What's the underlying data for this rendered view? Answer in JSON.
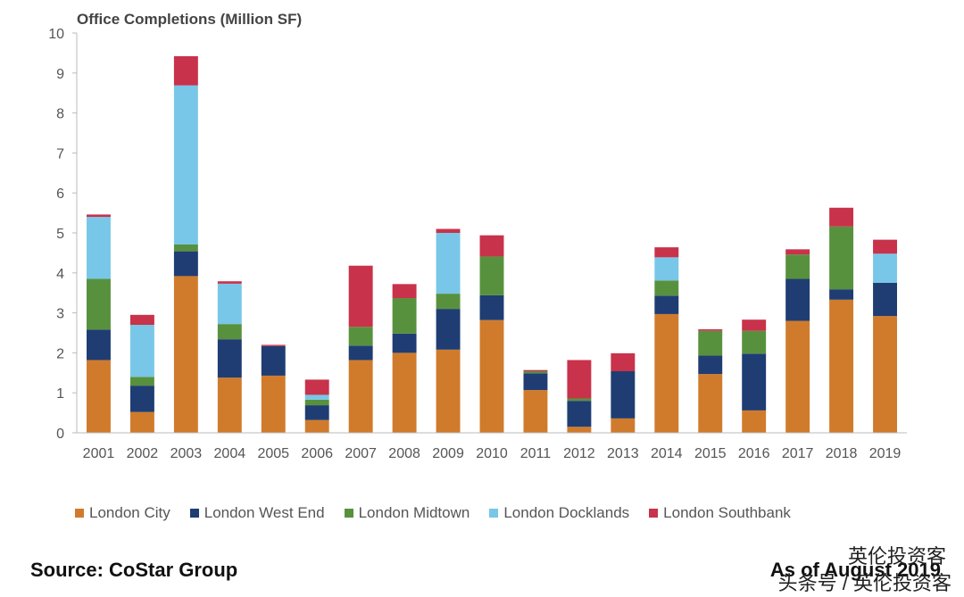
{
  "chart_data": {
    "type": "bar",
    "stacked": true,
    "title": "Office Completions (Million SF)",
    "ylim": [
      0,
      10
    ],
    "yticks": [
      0,
      1,
      2,
      3,
      4,
      5,
      6,
      7,
      8,
      9,
      10
    ],
    "categories": [
      "2001",
      "2002",
      "2003",
      "2004",
      "2005",
      "2006",
      "2007",
      "2008",
      "2009",
      "2010",
      "2011",
      "2012",
      "2013",
      "2014",
      "2015",
      "2016",
      "2017",
      "2018",
      "2019"
    ],
    "series": [
      {
        "name": "London City",
        "color": "#d07b2c",
        "values": [
          1.82,
          0.52,
          3.92,
          1.38,
          1.43,
          0.32,
          1.82,
          2.0,
          2.08,
          2.82,
          1.07,
          0.15,
          0.36,
          2.97,
          1.47,
          0.56,
          2.8,
          3.33,
          2.92
        ]
      },
      {
        "name": "London West End",
        "color": "#1f3d73",
        "values": [
          0.76,
          0.66,
          0.62,
          0.96,
          0.74,
          0.37,
          0.36,
          0.48,
          1.02,
          0.62,
          0.42,
          0.65,
          1.18,
          0.46,
          0.46,
          1.42,
          1.05,
          0.26,
          0.83
        ]
      },
      {
        "name": "London Midtown",
        "color": "#58913e",
        "values": [
          1.27,
          0.22,
          0.17,
          0.38,
          0.0,
          0.14,
          0.47,
          0.89,
          0.38,
          0.97,
          0.05,
          0.06,
          0.0,
          0.38,
          0.62,
          0.57,
          0.61,
          1.57,
          0.0
        ]
      },
      {
        "name": "London Docklands",
        "color": "#78c7e8",
        "values": [
          1.55,
          1.3,
          3.98,
          1.01,
          0.0,
          0.12,
          0.0,
          0.0,
          1.52,
          0.0,
          0.0,
          0.0,
          0.0,
          0.58,
          0.0,
          0.0,
          0.0,
          0.0,
          0.73
        ]
      },
      {
        "name": "London Southbank",
        "color": "#c8324a",
        "values": [
          0.06,
          0.25,
          0.73,
          0.06,
          0.03,
          0.38,
          1.53,
          0.35,
          0.1,
          0.53,
          0.03,
          0.96,
          0.45,
          0.25,
          0.04,
          0.28,
          0.13,
          0.47,
          0.35
        ]
      }
    ],
    "grid": false,
    "legend": "bottom"
  },
  "source": "Source: CoStar Group",
  "as_of": "As of August 2019",
  "watermark_line1": "英伦投资客",
  "watermark_line2": "头条号 / 英伦投资客"
}
